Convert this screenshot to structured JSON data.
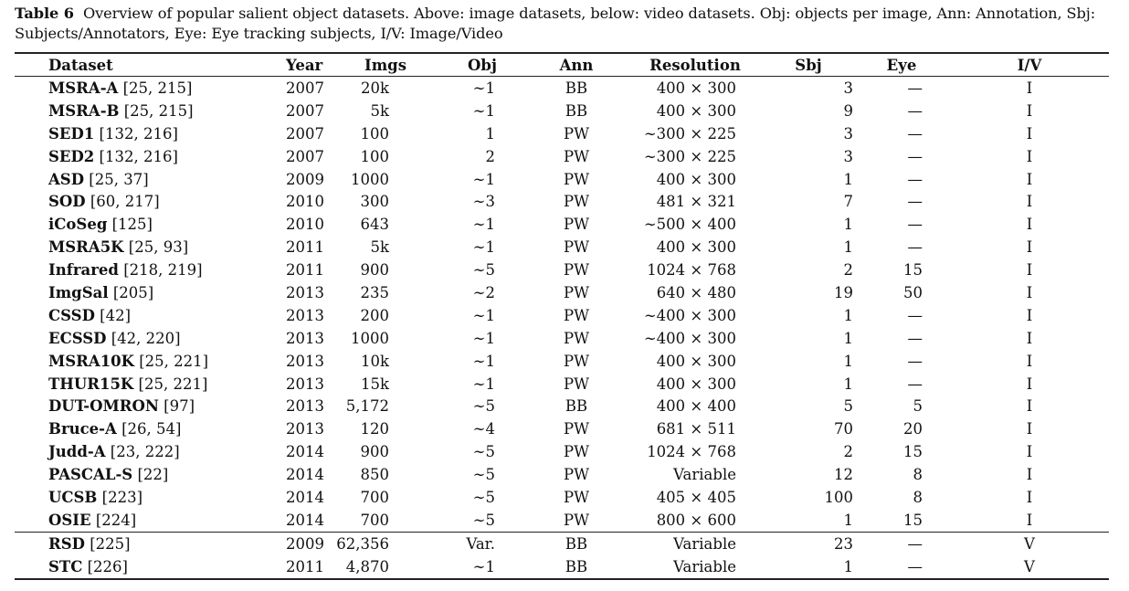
{
  "caption": {
    "label": "Table 6",
    "text": "Overview of popular salient object datasets. Above: image datasets, below: video datasets. Obj: objects per image, Ann: Annotation, Sbj: Subjects/Annotators, Eye: Eye tracking subjects, I/V: Image/Video"
  },
  "headers": {
    "dataset": "Dataset",
    "year": "Year",
    "imgs": "Imgs",
    "obj": "Obj",
    "ann": "Ann",
    "resolution": "Resolution",
    "sbj": "Sbj",
    "eye": "Eye",
    "iv": "I/V"
  },
  "image_rows": [
    {
      "name": "MSRA-A",
      "refs": "[25, 215]",
      "year": "2007",
      "imgs": "20k",
      "obj": "∼1",
      "ann": "BB",
      "res": "400 × 300",
      "sbj": "3",
      "eye": "—",
      "iv": "I"
    },
    {
      "name": "MSRA-B",
      "refs": "[25, 215]",
      "year": "2007",
      "imgs": "5k",
      "obj": "∼1",
      "ann": "BB",
      "res": "400 × 300",
      "sbj": "9",
      "eye": "—",
      "iv": "I"
    },
    {
      "name": "SED1",
      "refs": "[132, 216]",
      "year": "2007",
      "imgs": "100",
      "obj": "1",
      "ann": "PW",
      "res": "∼300 × 225",
      "sbj": "3",
      "eye": "—",
      "iv": "I"
    },
    {
      "name": "SED2",
      "refs": "[132, 216]",
      "year": "2007",
      "imgs": "100",
      "obj": "2",
      "ann": "PW",
      "res": "∼300 × 225",
      "sbj": "3",
      "eye": "—",
      "iv": "I"
    },
    {
      "name": "ASD",
      "refs": "[25, 37]",
      "year": "2009",
      "imgs": "1000",
      "obj": "∼1",
      "ann": "PW",
      "res": "400 × 300",
      "sbj": "1",
      "eye": "—",
      "iv": "I"
    },
    {
      "name": "SOD",
      "refs": "[60, 217]",
      "year": "2010",
      "imgs": "300",
      "obj": "∼3",
      "ann": "PW",
      "res": "481 × 321",
      "sbj": "7",
      "eye": "—",
      "iv": "I"
    },
    {
      "name": "iCoSeg",
      "refs": "[125]",
      "year": "2010",
      "imgs": "643",
      "obj": "∼1",
      "ann": "PW",
      "res": "∼500 × 400",
      "sbj": "1",
      "eye": "—",
      "iv": "I"
    },
    {
      "name": "MSRA5K",
      "refs": "[25, 93]",
      "year": "2011",
      "imgs": "5k",
      "obj": "∼1",
      "ann": "PW",
      "res": "400 × 300",
      "sbj": "1",
      "eye": "—",
      "iv": "I"
    },
    {
      "name": "Infrared",
      "refs": "[218, 219]",
      "year": "2011",
      "imgs": "900",
      "obj": "∼5",
      "ann": "PW",
      "res": "1024 × 768",
      "sbj": "2",
      "eye": "15",
      "iv": "I"
    },
    {
      "name": "ImgSal",
      "refs": "[205]",
      "year": "2013",
      "imgs": "235",
      "obj": "∼2",
      "ann": "PW",
      "res": "640 × 480",
      "sbj": "19",
      "eye": "50",
      "iv": "I"
    },
    {
      "name": "CSSD",
      "refs": "[42]",
      "year": "2013",
      "imgs": "200",
      "obj": "∼1",
      "ann": "PW",
      "res": "∼400 × 300",
      "sbj": "1",
      "eye": "—",
      "iv": "I"
    },
    {
      "name": "ECSSD",
      "refs": "[42, 220]",
      "year": "2013",
      "imgs": "1000",
      "obj": "∼1",
      "ann": "PW",
      "res": "∼400 × 300",
      "sbj": "1",
      "eye": "—",
      "iv": "I"
    },
    {
      "name": "MSRA10K",
      "refs": "[25, 221]",
      "year": "2013",
      "imgs": "10k",
      "obj": "∼1",
      "ann": "PW",
      "res": "400 × 300",
      "sbj": "1",
      "eye": "—",
      "iv": "I"
    },
    {
      "name": "THUR15K",
      "refs": "[25, 221]",
      "year": "2013",
      "imgs": "15k",
      "obj": "∼1",
      "ann": "PW",
      "res": "400 × 300",
      "sbj": "1",
      "eye": "—",
      "iv": "I"
    },
    {
      "name": "DUT-OMRON",
      "refs": "[97]",
      "year": "2013",
      "imgs": "5,172",
      "obj": "∼5",
      "ann": "BB",
      "res": "400 × 400",
      "sbj": "5",
      "eye": "5",
      "iv": "I"
    },
    {
      "name": "Bruce-A",
      "refs": "[26, 54]",
      "year": "2013",
      "imgs": "120",
      "obj": "∼4",
      "ann": "PW",
      "res": "681 × 511",
      "sbj": "70",
      "eye": "20",
      "iv": "I"
    },
    {
      "name": "Judd-A",
      "refs": "[23, 222]",
      "year": "2014",
      "imgs": "900",
      "obj": "∼5",
      "ann": "PW",
      "res": "1024 × 768",
      "sbj": "2",
      "eye": "15",
      "iv": "I"
    },
    {
      "name": "PASCAL-S",
      "refs": "[22]",
      "year": "2014",
      "imgs": "850",
      "obj": "∼5",
      "ann": "PW",
      "res": "Variable",
      "sbj": "12",
      "eye": "8",
      "iv": "I"
    },
    {
      "name": "UCSB",
      "refs": "[223]",
      "year": "2014",
      "imgs": "700",
      "obj": "∼5",
      "ann": "PW",
      "res": "405 × 405",
      "sbj": "100",
      "eye": "8",
      "iv": "I"
    },
    {
      "name": "OSIE",
      "refs": "[224]",
      "year": "2014",
      "imgs": "700",
      "obj": "∼5",
      "ann": "PW",
      "res": "800 × 600",
      "sbj": "1",
      "eye": "15",
      "iv": "I"
    }
  ],
  "video_rows": [
    {
      "name": "RSD",
      "refs": "[225]",
      "year": "2009",
      "imgs": "62,356",
      "obj": "Var.",
      "ann": "BB",
      "res": "Variable",
      "sbj": "23",
      "eye": "—",
      "iv": "V"
    },
    {
      "name": "STC",
      "refs": "[226]",
      "year": "2011",
      "imgs": "4,870",
      "obj": "∼1",
      "ann": "BB",
      "res": "Variable",
      "sbj": "1",
      "eye": "—",
      "iv": "V"
    }
  ]
}
